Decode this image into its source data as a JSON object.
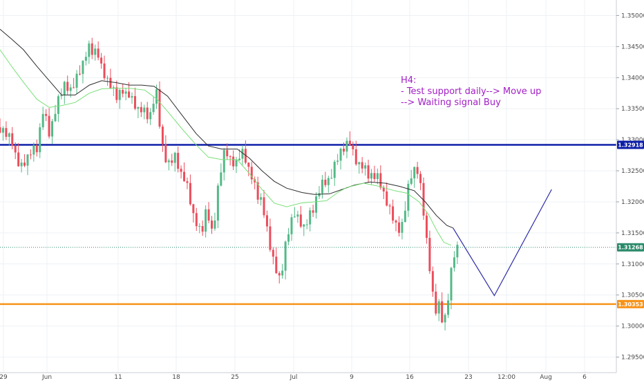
{
  "chart_data": {
    "type": "candlestick",
    "timeframe": "H4",
    "y_range": [
      1.2925,
      1.3525
    ],
    "price_ticks": [
      "1.35000",
      "1.34500",
      "1.34000",
      "1.33500",
      "1.33000",
      "1.32500",
      "1.32000",
      "1.31500",
      "1.31000",
      "1.30500",
      "1.30000",
      "1.29500"
    ],
    "date_ticks": [
      "29",
      "Jun",
      "11",
      "18",
      "25",
      "Jul",
      "9",
      "16",
      "23",
      "12:00",
      "Aug",
      "6"
    ],
    "grid": true,
    "horizontal_levels": [
      {
        "label": "1.32918",
        "value": 1.32918,
        "color": "#0d1ea8",
        "width": 2.5,
        "style": "solid"
      },
      {
        "label": "1.30353",
        "value": 1.30353,
        "color": "#f7931a",
        "width": 2.5,
        "style": "solid"
      },
      {
        "label": "1.31268",
        "value": 1.31268,
        "color": "#2a8a6a",
        "width": 1,
        "style": "dotted"
      }
    ],
    "annotation": {
      "lines": [
        "H4:",
        "- Test support daily--> Move up",
        "--> Waiting signal Buy"
      ],
      "color": "#a21dc6"
    },
    "projection_path": {
      "color": "#2a2aa8",
      "points": [
        [
          0.735,
          1.3158
        ],
        [
          0.802,
          1.3049
        ],
        [
          0.895,
          1.322
        ]
      ]
    },
    "ma_series": [
      {
        "color": "#2c2c2c",
        "points": [
          [
            0.0,
            1.3478
          ],
          [
            0.019,
            1.3462
          ],
          [
            0.038,
            1.3445
          ],
          [
            0.06,
            1.3418
          ],
          [
            0.08,
            1.3395
          ],
          [
            0.1,
            1.3372
          ],
          [
            0.122,
            1.3372
          ],
          [
            0.145,
            1.3388
          ],
          [
            0.165,
            1.3395
          ],
          [
            0.188,
            1.3392
          ],
          [
            0.21,
            1.3388
          ],
          [
            0.23,
            1.3388
          ],
          [
            0.25,
            1.3386
          ],
          [
            0.272,
            1.337
          ],
          [
            0.295,
            1.334
          ],
          [
            0.318,
            1.331
          ],
          [
            0.338,
            1.329
          ],
          [
            0.36,
            1.3285
          ],
          [
            0.385,
            1.3285
          ],
          [
            0.405,
            1.327
          ],
          [
            0.425,
            1.325
          ],
          [
            0.445,
            1.3233
          ],
          [
            0.465,
            1.3222
          ],
          [
            0.49,
            1.3215
          ],
          [
            0.51,
            1.3212
          ],
          [
            0.535,
            1.3213
          ],
          [
            0.555,
            1.322
          ],
          [
            0.575,
            1.3227
          ],
          [
            0.6,
            1.3232
          ],
          [
            0.625,
            1.323
          ],
          [
            0.648,
            1.3225
          ],
          [
            0.672,
            1.3218
          ],
          [
            0.69,
            1.32
          ],
          [
            0.708,
            1.3178
          ],
          [
            0.725,
            1.3162
          ],
          [
            0.735,
            1.3158
          ]
        ]
      },
      {
        "color": "#78e078",
        "points": [
          [
            0.0,
            1.3445
          ],
          [
            0.019,
            1.3418
          ],
          [
            0.04,
            1.339
          ],
          [
            0.06,
            1.3365
          ],
          [
            0.08,
            1.3352
          ],
          [
            0.1,
            1.3355
          ],
          [
            0.122,
            1.336
          ],
          [
            0.145,
            1.3375
          ],
          [
            0.165,
            1.3382
          ],
          [
            0.188,
            1.3383
          ],
          [
            0.21,
            1.3383
          ],
          [
            0.235,
            1.338
          ],
          [
            0.255,
            1.3365
          ],
          [
            0.275,
            1.3342
          ],
          [
            0.295,
            1.3318
          ],
          [
            0.318,
            1.3292
          ],
          [
            0.338,
            1.3272
          ],
          [
            0.36,
            1.3268
          ],
          [
            0.385,
            1.3268
          ],
          [
            0.405,
            1.3245
          ],
          [
            0.425,
            1.322
          ],
          [
            0.445,
            1.3198
          ],
          [
            0.465,
            1.3192
          ],
          [
            0.488,
            1.3198
          ],
          [
            0.51,
            1.32
          ],
          [
            0.53,
            1.3202
          ],
          [
            0.548,
            1.3215
          ],
          [
            0.562,
            1.3223
          ],
          [
            0.59,
            1.323
          ],
          [
            0.615,
            1.3225
          ],
          [
            0.64,
            1.3218
          ],
          [
            0.66,
            1.3214
          ],
          [
            0.68,
            1.32
          ],
          [
            0.695,
            1.318
          ],
          [
            0.708,
            1.3155
          ],
          [
            0.72,
            1.3135
          ],
          [
            0.732,
            1.313
          ]
        ]
      }
    ]
  }
}
